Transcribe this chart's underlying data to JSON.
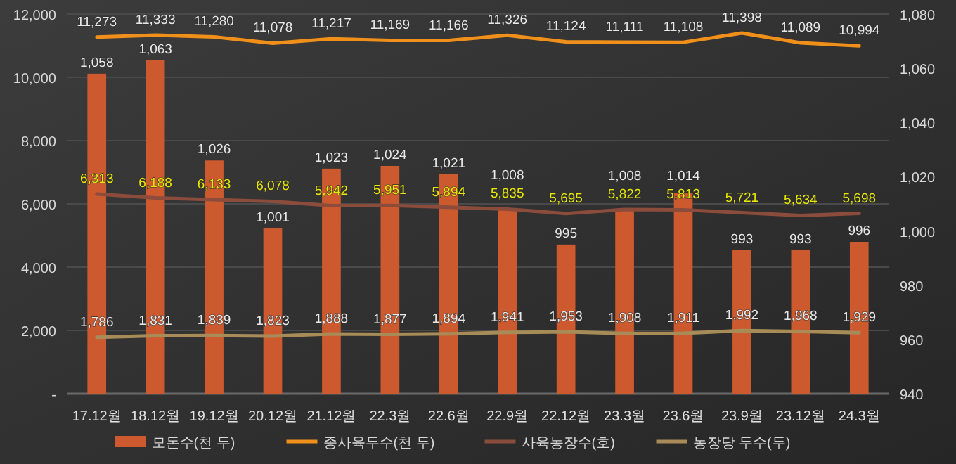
{
  "chart_data": {
    "type": "bar",
    "categories": [
      "17.12월",
      "18.12월",
      "19.12월",
      "20.12월",
      "21.12월",
      "22.3월",
      "22.6월",
      "22.9월",
      "22.12월",
      "23.3월",
      "23.6월",
      "23.9월",
      "23.12월",
      "24.3월"
    ],
    "series": [
      {
        "name": "모돈수(천 두)",
        "axis": "y2",
        "color": "#cc5a2e",
        "values": [
          1058,
          1063,
          1026,
          1001,
          1023,
          1024,
          1021,
          1008,
          995,
          1008,
          1014,
          993,
          993,
          996
        ],
        "value_labels": [
          "1,058",
          "1,063",
          "1,026",
          "1,001",
          "1,023",
          "1,024",
          "1,021",
          "1,008",
          "995",
          "1,008",
          "1,014",
          "993",
          "993",
          "996"
        ]
      },
      {
        "name": "종사육두수(천 두)",
        "type": "line",
        "color": "#f0901a",
        "values": [
          11273,
          11333,
          11280,
          11078,
          11217,
          11169,
          11166,
          11326,
          11124,
          11111,
          11108,
          11398,
          11089,
          10994
        ],
        "value_labels": [
          "11,273",
          "11,333",
          "11,280",
          "11,078",
          "11,217",
          "11,169",
          "11,166",
          "11,326",
          "11,124",
          "11,111",
          "11,108",
          "11,398",
          "11,089",
          "10,994"
        ]
      },
      {
        "name": "사육농장수(호)",
        "type": "line",
        "color": "#8c4c3c",
        "values": [
          6313,
          6188,
          6133,
          6078,
          5942,
          5951,
          5894,
          5835,
          5695,
          5822,
          5813,
          5721,
          5634,
          5698
        ],
        "value_labels": [
          "6,313",
          "6,188",
          "6,133",
          "6,078",
          "5,942",
          "5,951",
          "5,894",
          "5,835",
          "5,695",
          "5,822",
          "5,813",
          "5,721",
          "5,634",
          "5,698"
        ]
      },
      {
        "name": "농장당 두수(두)",
        "type": "line",
        "color": "#a88c58",
        "values": [
          1786,
          1831,
          1839,
          1823,
          1888,
          1877,
          1894,
          1941,
          1953,
          1908,
          1911,
          1992,
          1968,
          1929
        ],
        "value_labels": [
          "1,786",
          "1,831",
          "1,839",
          "1,823",
          "1,888",
          "1,877",
          "1,894",
          "1,941",
          "1,953",
          "1,908",
          "1,911",
          "1,992",
          "1,968",
          "1,929"
        ]
      }
    ],
    "ylim": [
      0,
      12000
    ],
    "yticks": [
      {
        "value": 0,
        "label": "-"
      },
      {
        "value": 2000,
        "label": "2,000"
      },
      {
        "value": 4000,
        "label": "4,000"
      },
      {
        "value": 6000,
        "label": "6,000"
      },
      {
        "value": 8000,
        "label": "8,000"
      },
      {
        "value": 10000,
        "label": "10,000"
      },
      {
        "value": 12000,
        "label": "12,000"
      }
    ],
    "y2lim": [
      940,
      1080
    ],
    "y2ticks": [
      {
        "value": 940,
        "label": "940"
      },
      {
        "value": 960,
        "label": "960"
      },
      {
        "value": 980,
        "label": "980"
      },
      {
        "value": 1000,
        "label": "1,000"
      },
      {
        "value": 1020,
        "label": "1,020"
      },
      {
        "value": 1040,
        "label": "1,040"
      },
      {
        "value": 1060,
        "label": "1,060"
      },
      {
        "value": 1080,
        "label": "1,080"
      }
    ],
    "grid": "y",
    "legend": "bottom",
    "marker": "none",
    "line_style": "solid"
  }
}
